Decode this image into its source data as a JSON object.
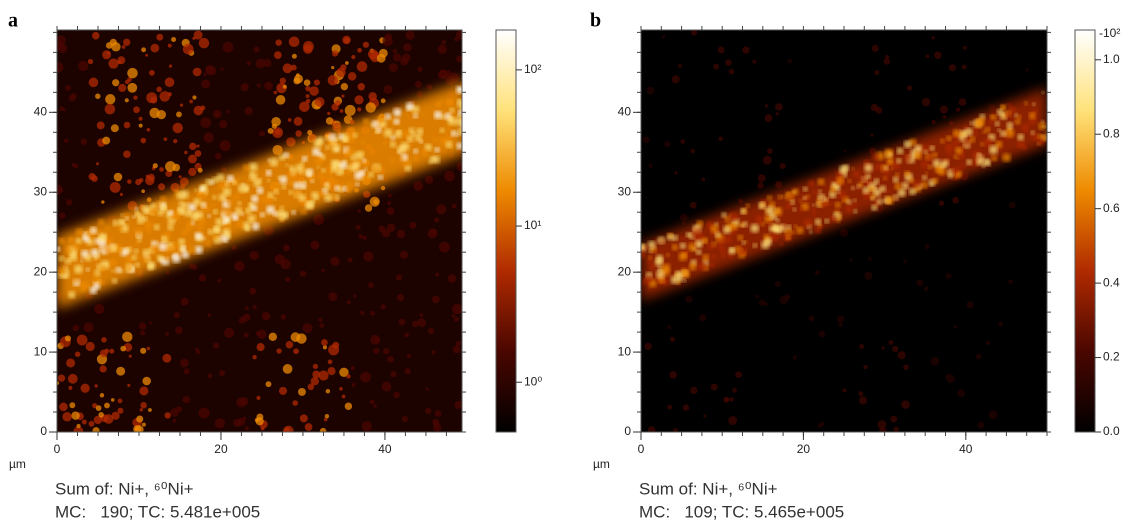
{
  "chart_data": [
    {
      "type": "heatmap",
      "panel_label": "a",
      "x_label": "µm",
      "caption": [
        "Sum of: Ni+, ⁶⁰Ni+",
        "MC:   190; TC: 5.481e+005"
      ],
      "xlim": [
        0,
        49.4
      ],
      "ylim": [
        0,
        50.3
      ],
      "xticks": [
        0,
        20,
        40
      ],
      "yticks": [
        0,
        10,
        20,
        30,
        40
      ],
      "colormap": [
        "#000000",
        "#4a0600",
        "#b02a00",
        "#ee8a00",
        "#ffe27a",
        "#ffffff"
      ],
      "colorbar": {
        "scale": "log",
        "lim": [
          0.48,
          180
        ],
        "ticks": [
          {
            "value": 1,
            "label": "10⁰"
          },
          {
            "value": 10,
            "label": "10¹"
          },
          {
            "value": 100,
            "label": "10²"
          }
        ]
      }
    },
    {
      "type": "heatmap",
      "panel_label": "b",
      "x_label": "µm",
      "caption": [
        "Sum of: Ni+, ⁶⁰Ni+",
        "MC:   109; TC: 5.465e+005"
      ],
      "xlim": [
        0,
        50
      ],
      "ylim": [
        0,
        50.3
      ],
      "xticks": [
        0,
        20,
        40
      ],
      "yticks": [
        0,
        10,
        20,
        30,
        40
      ],
      "colormap": [
        "#000000",
        "#4a0600",
        "#b02a00",
        "#ee8a00",
        "#ffe27a",
        "#ffffff"
      ],
      "colorbar": {
        "scale": "linear",
        "lim": [
          0,
          1.08
        ],
        "multiplier": "-10²",
        "ticks": [
          {
            "value": 0,
            "label": "0.0"
          },
          0.2,
          0.4,
          0.6,
          0.8,
          {
            "value": 1,
            "label": "1.0"
          }
        ]
      }
    }
  ]
}
